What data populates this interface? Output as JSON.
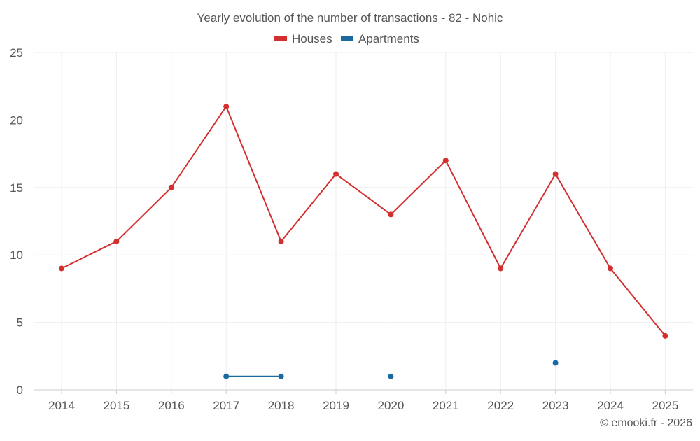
{
  "chart_data": {
    "type": "line",
    "title": "Yearly evolution of the number of transactions - 82 - Nohic",
    "categories": [
      "2014",
      "2015",
      "2016",
      "2017",
      "2018",
      "2019",
      "2020",
      "2021",
      "2022",
      "2023",
      "2024",
      "2025"
    ],
    "series": [
      {
        "name": "Houses",
        "color": "#d32f2f",
        "values": [
          9,
          11,
          15,
          21,
          11,
          16,
          13,
          17,
          9,
          16,
          9,
          4
        ]
      },
      {
        "name": "Apartments",
        "color": "#1a6aa0",
        "values": [
          null,
          null,
          null,
          1,
          1,
          null,
          1,
          null,
          null,
          2,
          null,
          null
        ]
      }
    ],
    "ylim": [
      0,
      25
    ],
    "yticks": [
      0,
      5,
      10,
      15,
      20,
      25
    ],
    "xlabel": "",
    "ylabel": "",
    "grid": true,
    "legend_position": "top-center"
  },
  "credit": "© emooki.fr - 2026"
}
